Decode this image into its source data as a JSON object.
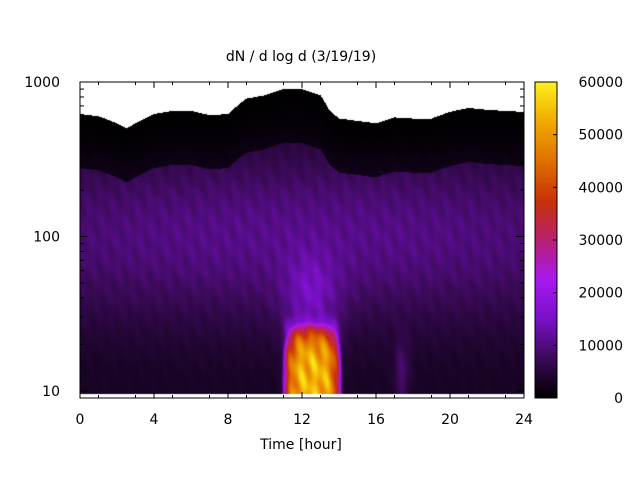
{
  "chart_data": {
    "type": "heatmap",
    "title": "dN / d log d (3/19/19)",
    "xlabel": "Time [hour]",
    "ylabel": "",
    "xlim": [
      0,
      24
    ],
    "x_ticks": [
      0,
      4,
      8,
      12,
      16,
      20,
      24
    ],
    "y_scale": "log",
    "ylim": [
      9,
      1000
    ],
    "y_ticks": [
      {
        "value": 10,
        "label": "10"
      },
      {
        "value": 100,
        "label": "100"
      },
      {
        "value": 1000,
        "label": "1000"
      }
    ],
    "colorbar": {
      "range": [
        0,
        60000
      ],
      "ticks": [
        0,
        10000,
        20000,
        30000,
        40000,
        50000,
        60000
      ],
      "palette": [
        "#000000",
        "#3c0a5a",
        "#7a10c8",
        "#a818f0",
        "#b8206e",
        "#c83208",
        "#e07000",
        "#f0aa00",
        "#fff020"
      ]
    },
    "upper_cutoff_profile": {
      "time": [
        0,
        1,
        2,
        2.5,
        3,
        3.5,
        4,
        5,
        6,
        7,
        8,
        8.5,
        9,
        10,
        11,
        12,
        13,
        13.5,
        14,
        15,
        16,
        17,
        18,
        19,
        20,
        21,
        22,
        23,
        24
      ],
      "diameter": [
        620,
        600,
        540,
        500,
        540,
        580,
        620,
        650,
        650,
        610,
        620,
        700,
        780,
        820,
        900,
        900,
        820,
        650,
        580,
        560,
        540,
        590,
        580,
        580,
        640,
        680,
        660,
        650,
        640
      ]
    },
    "lower_cutoff_diameter": 9.6,
    "background_level": 3000,
    "features": [
      {
        "kind": "band",
        "time_center": 12,
        "time_width": 24,
        "diameter_center": 100,
        "log_spread": 0.55,
        "value": 9000
      },
      {
        "kind": "blob",
        "time_center": 12.5,
        "time_width": 1.5,
        "diameter_center": 40,
        "log_spread": 0.25,
        "value": 8000
      },
      {
        "kind": "event",
        "time_start": 10.9,
        "time_end": 14.2,
        "diameter_min": 9.6,
        "diameter_max": 28,
        "peak_value": 56000
      },
      {
        "kind": "streak",
        "time_center": 17.4,
        "time_width": 0.4,
        "diameter_center": 13,
        "log_spread": 0.2,
        "value": 6000
      }
    ]
  }
}
